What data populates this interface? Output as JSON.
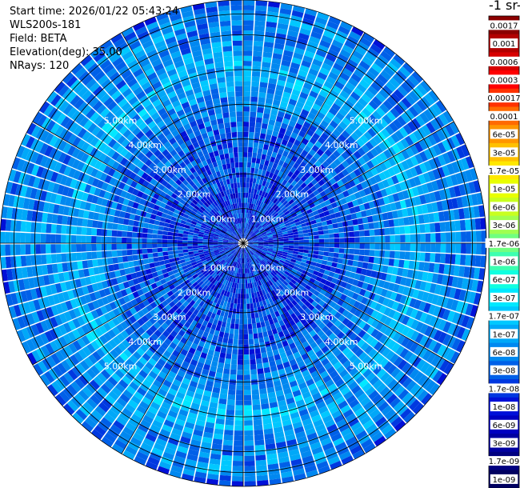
{
  "info": {
    "start_time": "Start time: 2026/01/22 05:43:24",
    "instrument": "WLS200s-181",
    "field": "Field: BETA",
    "elevation": "Elevation(deg): 35.00",
    "nrays": "NRays: 120"
  },
  "colorbar": {
    "title_fragment": "-1 sr-",
    "labels": [
      "0.0017",
      "0.001",
      "0.0006",
      "0.0003",
      "0.00017",
      "0.0001",
      "6e-05",
      "3e-05",
      "1.7e-05",
      "1e-05",
      "6e-06",
      "3e-06",
      "1.7e-06",
      "1e-06",
      "6e-07",
      "3e-07",
      "1.7e-07",
      "1e-07",
      "6e-08",
      "3e-08",
      "1.7e-08",
      "1e-08",
      "6e-09",
      "3e-09",
      "1.7e-09",
      "1e-09"
    ],
    "colors": [
      "#8b0000",
      "#b20000",
      "#d80000",
      "#ff0000",
      "#ff3200",
      "#ff6a00",
      "#ff9600",
      "#ffc000",
      "#ffe800",
      "#e8ff00",
      "#c8ff20",
      "#a0ff50",
      "#70ff80",
      "#3cffb0",
      "#10ffe0",
      "#00e8ff",
      "#00c8ff",
      "#00a8f8",
      "#0088f0",
      "#0060e8",
      "#0038e0",
      "#0010d8",
      "#0000c0",
      "#0000a0",
      "#000080",
      "#000060"
    ]
  },
  "chart_data": {
    "type": "heatmap",
    "projection": "polar (PPI scan)",
    "field": "BETA",
    "elevation_deg": 35.0,
    "n_rays": 120,
    "range_rings_km": [
      1,
      2,
      3,
      4,
      5
    ],
    "ring_labels": [
      "1.00km",
      "2.00km",
      "3.00km",
      "4.00km",
      "5.00km"
    ],
    "max_range_km": 7.0,
    "azimuth_spokes_deg": [
      0,
      30,
      60,
      90,
      120,
      150,
      180,
      210,
      240,
      270,
      300,
      330
    ],
    "color_scale": "log",
    "value_range": [
      1e-09,
      0.0017
    ],
    "range_profile": [
      {
        "range_km": 0.0,
        "value": 2e-08
      },
      {
        "range_km": 1.0,
        "value": 2e-08
      },
      {
        "range_km": 1.5,
        "value": 2e-08
      },
      {
        "range_km": 2.0,
        "value": 2.5e-08
      },
      {
        "range_km": 3.0,
        "value": 3e-08
      },
      {
        "range_km": 4.0,
        "value": 5e-08
      },
      {
        "range_km": 4.7,
        "value": 1e-07
      },
      {
        "range_km": 5.0,
        "value": 1.2e-07
      },
      {
        "range_km": 5.3,
        "value": 1e-07
      },
      {
        "range_km": 6.0,
        "value": 5e-08
      },
      {
        "range_km": 6.6,
        "value": 8e-08
      },
      {
        "range_km": 7.0,
        "value": 3e-08
      }
    ]
  }
}
